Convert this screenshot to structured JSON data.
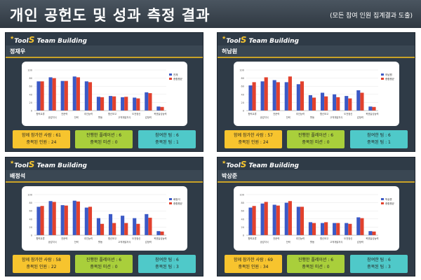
{
  "header": {
    "title": "개인 공헌도 및 성과 측정 결과",
    "subtitle": "(모든 참여 인원 집계결과 도출)"
  },
  "brand": {
    "tool": "Tool",
    "s": "S",
    "rest": " Team Building"
  },
  "colors": {
    "series1": "#3b59c6",
    "series2": "#e2412d",
    "panel": "#2f3b47",
    "accent": "#c9a227"
  },
  "chart_axis": {
    "ylim": [
      0,
      100
    ],
    "yticks": [
      0,
      20,
      40,
      60,
      80,
      100
    ]
  },
  "panels": [
    {
      "name": "정재우",
      "legend": [
        "전체",
        "종합평균"
      ],
      "categories": [
        "협력교류",
        "공감지식",
        "전문력",
        "전략",
        "추진능력",
        "활동",
        "협신보고",
        "고객개발지식",
        "도전정신",
        "감정력",
        "목표달성능력"
      ],
      "series": [
        {
          "name": "전체",
          "values": [
            72,
            82,
            73,
            84,
            72,
            34,
            36,
            33,
            32,
            45,
            10
          ]
        },
        {
          "name": "종합평균",
          "values": [
            72,
            80,
            73,
            82,
            70,
            33,
            35,
            34,
            30,
            43,
            9
          ]
        }
      ],
      "stats": {
        "total_label": "함께 참가한 사람 : ",
        "total": 61,
        "dup_label": "중복된 인원 : ",
        "dup": 24,
        "mission_label": "진행한 플레이션 : ",
        "mission": 6,
        "dup_mission_label": "중복된 미션 : ",
        "dup_mission": 0,
        "team_label": "참여한 팀 : ",
        "team": 6,
        "dup_team_label": "중복된 팀 : ",
        "dup_team": 1
      }
    },
    {
      "name": "허남원",
      "legend": [
        "허남원",
        "종합평균"
      ],
      "categories": [
        "협력교류",
        "공감지식",
        "전문력",
        "전략",
        "추진능력",
        "활동",
        "협신보고",
        "고객개발지식",
        "도전정신",
        "감정력",
        "목표달성능력"
      ],
      "series": [
        {
          "name": "허남원",
          "values": [
            62,
            72,
            75,
            70,
            65,
            38,
            44,
            40,
            36,
            50,
            10
          ]
        },
        {
          "name": "종합평균",
          "values": [
            70,
            82,
            70,
            84,
            72,
            32,
            35,
            33,
            30,
            44,
            9
          ]
        }
      ],
      "stats": {
        "total_label": "함께 참가한 사람 : ",
        "total": 57,
        "dup_label": "중복된 인원 : ",
        "dup": 24,
        "mission_label": "진행한 플레이션 : ",
        "mission": 6,
        "dup_mission_label": "중복된 미션 : ",
        "dup_mission": 0,
        "team_label": "참여한 팀 : ",
        "team": 6,
        "dup_team_label": "중복된 팀 : ",
        "dup_team": 1
      }
    },
    {
      "name": "배정석",
      "legend": [
        "배정석",
        "종합평균"
      ],
      "categories": [
        "협력교류",
        "공감지식",
        "전문력",
        "전략",
        "추진능력",
        "활동",
        "협신보고",
        "고객개발지식",
        "도전정신",
        "감정력",
        "목표달성능력"
      ],
      "series": [
        {
          "name": "배정석",
          "values": [
            70,
            84,
            74,
            85,
            68,
            42,
            52,
            48,
            42,
            52,
            10
          ]
        },
        {
          "name": "종합평균",
          "values": [
            72,
            82,
            73,
            83,
            70,
            28,
            30,
            30,
            28,
            43,
            9
          ]
        }
      ],
      "stats": {
        "total_label": "함께 참가한 사람 : ",
        "total": 58,
        "dup_label": "중복된 인원 : ",
        "dup": 22,
        "mission_label": "진행한 플레이션 : ",
        "mission": 6,
        "dup_mission_label": "중복된 미션 : ",
        "dup_mission": 0,
        "team_label": "참여한 팀 : ",
        "team": 6,
        "dup_team_label": "중복된 팀 : ",
        "dup_team": 3
      }
    },
    {
      "name": "박상준",
      "legend": [
        "박상준",
        "종합평균"
      ],
      "categories": [
        "협력교류",
        "공감지식",
        "전문력",
        "전략",
        "추진능력",
        "활동",
        "협신보고",
        "고객개발지식",
        "도전정신",
        "감정력",
        "목표달성능력"
      ],
      "series": [
        {
          "name": "박상준",
          "values": [
            68,
            78,
            75,
            80,
            70,
            32,
            30,
            30,
            30,
            44,
            10
          ]
        },
        {
          "name": "종합평균",
          "values": [
            72,
            82,
            73,
            84,
            70,
            30,
            32,
            30,
            28,
            42,
            9
          ]
        }
      ],
      "stats": {
        "total_label": "함께 참가한 사람 : ",
        "total": 69,
        "dup_label": "중복된 인원 : ",
        "dup": 34,
        "mission_label": "진행한 플레이션 : ",
        "mission": 6,
        "dup_mission_label": "중복된 미션 : ",
        "dup_mission": 0,
        "team_label": "참여한 팀 : ",
        "team": 6,
        "dup_team_label": "중복된 팀 : ",
        "dup_team": 3
      }
    }
  ],
  "chart_data": [
    {
      "type": "bar",
      "categories": [
        "협력교류",
        "공감지식",
        "전문력",
        "전략",
        "추진능력",
        "활동",
        "협신보고",
        "고객개발지식",
        "도전정신",
        "감정력",
        "목표달성능력"
      ],
      "series": [
        {
          "name": "전체",
          "values": [
            72,
            82,
            73,
            84,
            72,
            34,
            36,
            33,
            32,
            45,
            10
          ]
        },
        {
          "name": "종합평균",
          "values": [
            72,
            80,
            73,
            82,
            70,
            33,
            35,
            34,
            30,
            43,
            9
          ]
        }
      ],
      "ylim": [
        0,
        100
      ],
      "legend": "top-right"
    },
    {
      "type": "bar",
      "categories": [
        "협력교류",
        "공감지식",
        "전문력",
        "전략",
        "추진능력",
        "활동",
        "협신보고",
        "고객개발지식",
        "도전정신",
        "감정력",
        "목표달성능력"
      ],
      "series": [
        {
          "name": "허남원",
          "values": [
            62,
            72,
            75,
            70,
            65,
            38,
            44,
            40,
            36,
            50,
            10
          ]
        },
        {
          "name": "종합평균",
          "values": [
            70,
            82,
            70,
            84,
            72,
            32,
            35,
            33,
            30,
            44,
            9
          ]
        }
      ],
      "ylim": [
        0,
        100
      ],
      "legend": "top-right"
    },
    {
      "type": "bar",
      "categories": [
        "협력교류",
        "공감지식",
        "전문력",
        "전략",
        "추진능력",
        "활동",
        "협신보고",
        "고객개발지식",
        "도전정신",
        "감정력",
        "목표달성능력"
      ],
      "series": [
        {
          "name": "배정석",
          "values": [
            70,
            84,
            74,
            85,
            68,
            42,
            52,
            48,
            42,
            52,
            10
          ]
        },
        {
          "name": "종합평균",
          "values": [
            72,
            82,
            73,
            83,
            70,
            28,
            30,
            30,
            28,
            43,
            9
          ]
        }
      ],
      "ylim": [
        0,
        100
      ],
      "legend": "top-right"
    },
    {
      "type": "bar",
      "categories": [
        "협력교류",
        "공감지식",
        "전문력",
        "전략",
        "추진능력",
        "활동",
        "협신보고",
        "고객개발지식",
        "도전정신",
        "감정력",
        "목표달성능력"
      ],
      "series": [
        {
          "name": "박상준",
          "values": [
            68,
            78,
            75,
            80,
            70,
            32,
            30,
            30,
            30,
            44,
            10
          ]
        },
        {
          "name": "종합평균",
          "values": [
            72,
            82,
            73,
            84,
            70,
            30,
            32,
            30,
            28,
            42,
            9
          ]
        }
      ],
      "ylim": [
        0,
        100
      ],
      "legend": "top-right"
    }
  ]
}
